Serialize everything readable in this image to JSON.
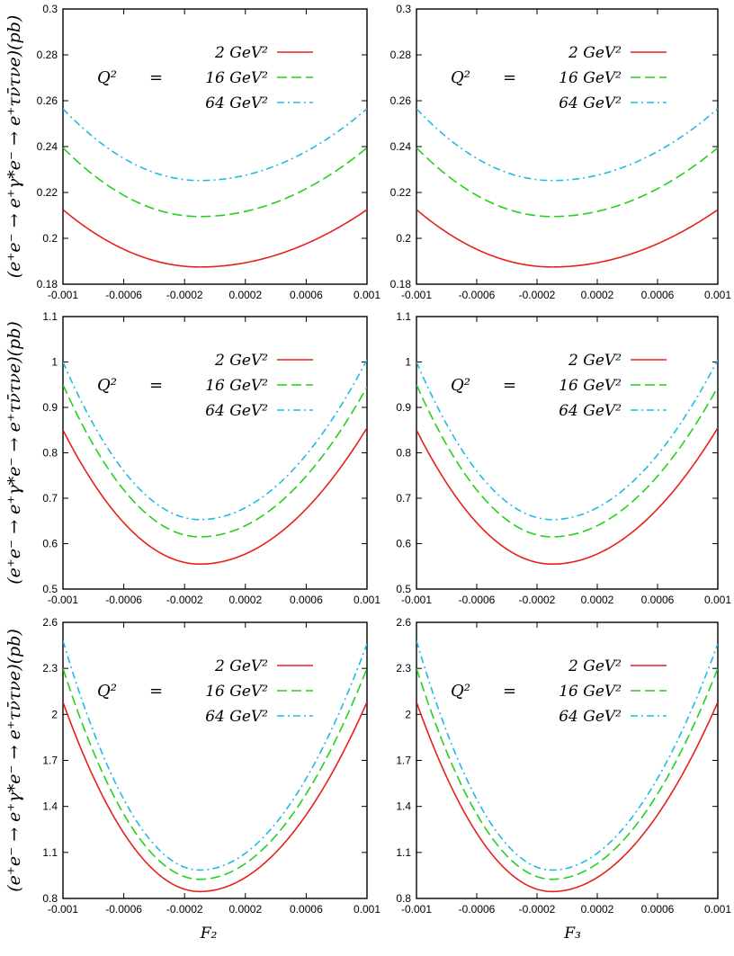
{
  "colors": {
    "s2": "#e8201c",
    "s16": "#22d11a",
    "s64": "#1ebbe6"
  },
  "y_axis_label": "(e⁺e⁻ → e⁺γ*e⁻ → e⁺τν̄τνe)(pb)",
  "legend": {
    "q2_label": "Q²",
    "equals": "=",
    "entries": [
      "2 GeV²",
      "16 GeV²",
      "64 GeV²"
    ]
  },
  "chart_data": [
    {
      "type": "line",
      "row": 1,
      "col": 1,
      "xlabel": "",
      "xlim": [
        -0.001,
        0.001
      ],
      "ylim": [
        0.18,
        0.3
      ],
      "xticks": [
        "-0.001",
        "-0.0006",
        "-0.0002",
        "0.0002",
        "0.0006",
        "0.001"
      ],
      "yticks": [
        "0.18",
        "0.2",
        "0.22",
        "0.24",
        "0.26",
        "0.28",
        "0.3"
      ],
      "x_min": -0.0001,
      "series": [
        {
          "name": "2 GeV²",
          "min": 0.1875,
          "end_left": 0.2125,
          "end_right": 0.2125
        },
        {
          "name": "16 GeV²",
          "min": 0.2095,
          "end_left": 0.2395,
          "end_right": 0.2395
        },
        {
          "name": "64 GeV²",
          "min": 0.2252,
          "end_left": 0.2565,
          "end_right": 0.2565
        }
      ]
    },
    {
      "type": "line",
      "row": 1,
      "col": 2,
      "xlabel": "",
      "xlim": [
        -0.001,
        0.001
      ],
      "ylim": [
        0.18,
        0.3
      ],
      "xticks": [
        "-0.001",
        "-0.0006",
        "-0.0002",
        "0.0002",
        "0.0006",
        "0.001"
      ],
      "yticks": [
        "0.18",
        "0.2",
        "0.22",
        "0.24",
        "0.26",
        "0.28",
        "0.3"
      ],
      "x_min": -0.0001,
      "series": [
        {
          "name": "2 GeV²",
          "min": 0.1875,
          "end_left": 0.2125,
          "end_right": 0.2125
        },
        {
          "name": "16 GeV²",
          "min": 0.2095,
          "end_left": 0.2395,
          "end_right": 0.2395
        },
        {
          "name": "64 GeV²",
          "min": 0.2252,
          "end_left": 0.2565,
          "end_right": 0.2565
        }
      ]
    },
    {
      "type": "line",
      "row": 2,
      "col": 1,
      "xlabel": "",
      "xlim": [
        -0.001,
        0.001
      ],
      "ylim": [
        0.5,
        1.1
      ],
      "xticks": [
        "-0.001",
        "-0.0006",
        "-0.0002",
        "0.0002",
        "0.0006",
        "0.001"
      ],
      "yticks": [
        "0.5",
        "0.6",
        "0.7",
        "0.8",
        "0.9",
        "1",
        "1.1"
      ],
      "x_min": -0.0001,
      "series": [
        {
          "name": "2 GeV²",
          "min": 0.555,
          "end_left": 0.85,
          "end_right": 0.855
        },
        {
          "name": "16 GeV²",
          "min": 0.615,
          "end_left": 0.95,
          "end_right": 0.945
        },
        {
          "name": "64 GeV²",
          "min": 0.653,
          "end_left": 1.0,
          "end_right": 1.005
        }
      ]
    },
    {
      "type": "line",
      "row": 2,
      "col": 2,
      "xlabel": "",
      "xlim": [
        -0.001,
        0.001
      ],
      "ylim": [
        0.5,
        1.1
      ],
      "xticks": [
        "-0.001",
        "-0.0006",
        "-0.0002",
        "0.0002",
        "0.0006",
        "0.001"
      ],
      "yticks": [
        "0.5",
        "0.6",
        "0.7",
        "0.8",
        "0.9",
        "1",
        "1.1"
      ],
      "x_min": -0.0001,
      "series": [
        {
          "name": "2 GeV²",
          "min": 0.555,
          "end_left": 0.85,
          "end_right": 0.855
        },
        {
          "name": "16 GeV²",
          "min": 0.615,
          "end_left": 0.95,
          "end_right": 0.945
        },
        {
          "name": "64 GeV²",
          "min": 0.653,
          "end_left": 1.0,
          "end_right": 1.005
        }
      ]
    },
    {
      "type": "line",
      "row": 3,
      "col": 1,
      "xlabel": "F₂",
      "xlim": [
        -0.001,
        0.001
      ],
      "ylim": [
        0.8,
        2.6
      ],
      "xticks": [
        "-0.001",
        "-0.0006",
        "-0.0002",
        "0.0002",
        "0.0006",
        "0.001"
      ],
      "yticks": [
        "0.8",
        "1.1",
        "1.4",
        "1.7",
        "2",
        "2.3",
        "2.6"
      ],
      "x_min": -0.0001,
      "series": [
        {
          "name": "2 GeV²",
          "min": 0.845,
          "end_left": 2.08,
          "end_right": 2.08
        },
        {
          "name": "16 GeV²",
          "min": 0.925,
          "end_left": 2.3,
          "end_right": 2.3
        },
        {
          "name": "64 GeV²",
          "min": 0.985,
          "end_left": 2.48,
          "end_right": 2.46
        }
      ]
    },
    {
      "type": "line",
      "row": 3,
      "col": 2,
      "xlabel": "F₃",
      "xlim": [
        -0.001,
        0.001
      ],
      "ylim": [
        0.8,
        2.6
      ],
      "xticks": [
        "-0.001",
        "-0.0006",
        "-0.0002",
        "0.0002",
        "0.0006",
        "0.001"
      ],
      "yticks": [
        "0.8",
        "1.1",
        "1.4",
        "1.7",
        "2",
        "2.3",
        "2.6"
      ],
      "x_min": -0.0001,
      "series": [
        {
          "name": "2 GeV²",
          "min": 0.845,
          "end_left": 2.08,
          "end_right": 2.08
        },
        {
          "name": "16 GeV²",
          "min": 0.925,
          "end_left": 2.3,
          "end_right": 2.3
        },
        {
          "name": "64 GeV²",
          "min": 0.985,
          "end_left": 2.48,
          "end_right": 2.46
        }
      ]
    }
  ]
}
